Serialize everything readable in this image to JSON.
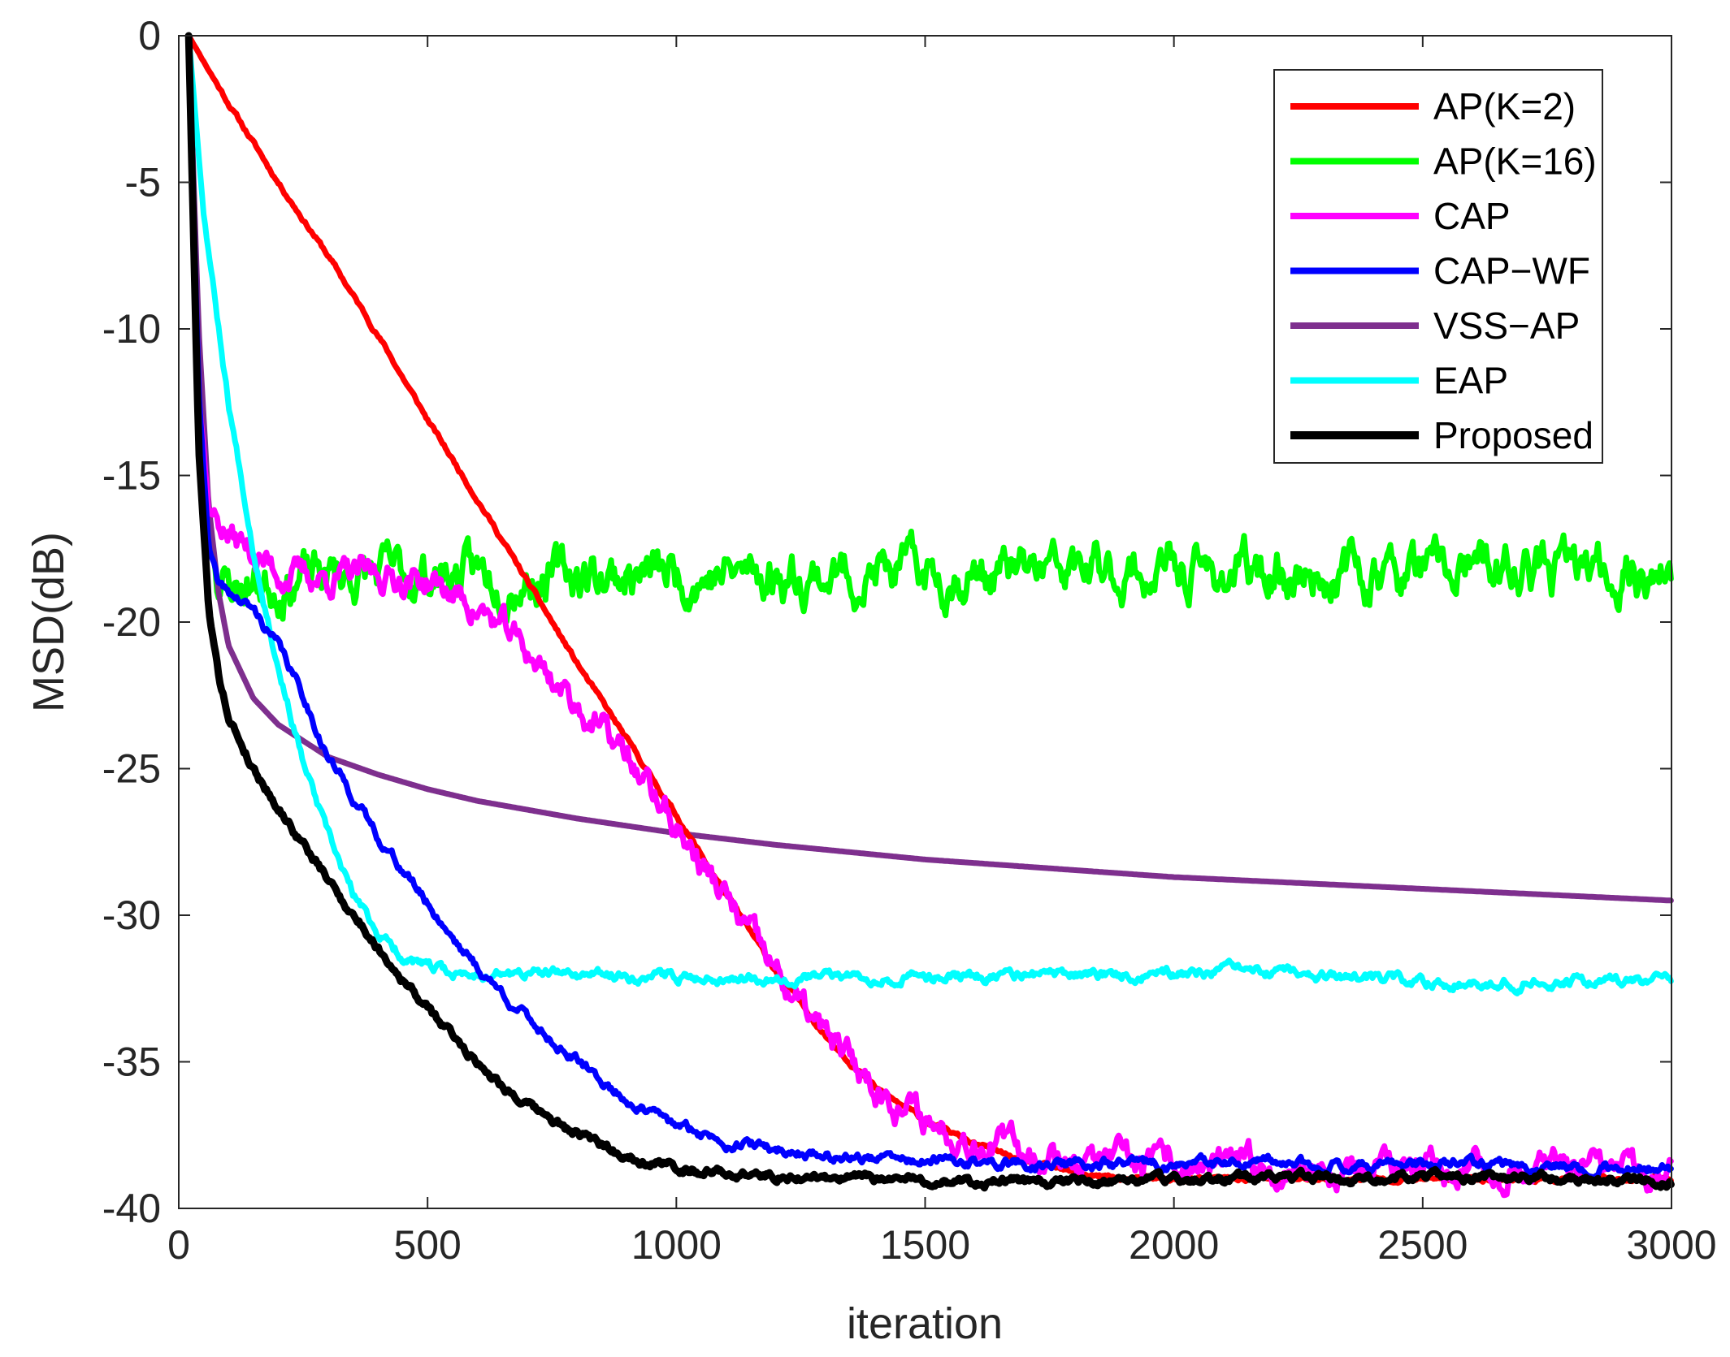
{
  "chart_data": {
    "type": "line",
    "title": "",
    "xlabel": "iteration",
    "ylabel": "MSD(dB)",
    "xlim": [
      0,
      3000
    ],
    "ylim": [
      -40,
      0
    ],
    "xticks": [
      0,
      500,
      1000,
      1500,
      2000,
      2500,
      3000
    ],
    "yticks": [
      0,
      -5,
      -10,
      -15,
      -20,
      -25,
      -30,
      -35,
      -40
    ],
    "grid": false,
    "legend_position": "top-right",
    "series": [
      {
        "name": "AP(K=2)",
        "color": "#ff0000",
        "noise": 0.05,
        "seed": 11,
        "x": [
          20,
          100,
          200,
          300,
          400,
          500,
          600,
          700,
          800,
          900,
          1000,
          1100,
          1200,
          1300,
          1400,
          1500,
          1600,
          1700,
          1800,
          1900,
          2000,
          2200,
          2500,
          3000
        ],
        "y": [
          0,
          -2.3,
          -5.0,
          -7.5,
          -10.2,
          -13.1,
          -15.8,
          -18.6,
          -21.4,
          -24.0,
          -26.6,
          -29.3,
          -31.9,
          -34.1,
          -35.9,
          -37.0,
          -37.8,
          -38.4,
          -38.8,
          -39.0,
          -39.0,
          -39.0,
          -39.0,
          -39.0
        ]
      },
      {
        "name": "AP(K=16)",
        "color": "#00ff00",
        "noise": 0.55,
        "seed": 23,
        "x": [
          20,
          40,
          60,
          80,
          100,
          200,
          300,
          3000
        ],
        "y": [
          0,
          -12.0,
          -16.5,
          -18.3,
          -18.8,
          -18.6,
          -18.4,
          -18.3
        ]
      },
      {
        "name": "CAP",
        "color": "#ff00ff",
        "noise": 0.35,
        "seed": 37,
        "x": [
          20,
          40,
          60,
          100,
          200,
          300,
          400,
          500,
          600,
          700,
          800,
          900,
          1000,
          1100,
          1200,
          1300,
          1400,
          1500,
          1600,
          1700,
          1800,
          1900,
          2000,
          2500,
          3000
        ],
        "y": [
          0,
          -12.0,
          -16.0,
          -17.0,
          -18.3,
          -18.5,
          -18.4,
          -18.6,
          -19.5,
          -21.0,
          -22.8,
          -24.6,
          -27.0,
          -29.5,
          -32.0,
          -34.2,
          -35.8,
          -37.0,
          -37.6,
          -38.0,
          -38.3,
          -38.5,
          -38.6,
          -38.7,
          -38.8
        ]
      },
      {
        "name": "CAP−WF",
        "color": "#0000ff",
        "noise": 0.12,
        "seed": 41,
        "x": [
          20,
          40,
          60,
          80,
          100,
          150,
          200,
          250,
          300,
          400,
          500,
          600,
          700,
          800,
          900,
          1000,
          1100,
          1200,
          1300,
          1400,
          1500,
          1700,
          2000,
          2500,
          3000
        ],
        "y": [
          0,
          -12.0,
          -17.5,
          -18.8,
          -19.0,
          -19.6,
          -20.8,
          -22.5,
          -24.6,
          -27.3,
          -29.6,
          -31.8,
          -33.5,
          -35.0,
          -36.3,
          -37.2,
          -37.7,
          -38.0,
          -38.2,
          -38.3,
          -38.4,
          -38.5,
          -38.5,
          -38.5,
          -38.6
        ]
      },
      {
        "name": "VSS−AP",
        "color": "#7e2f8e",
        "noise": 0,
        "seed": 53,
        "x": [
          20,
          40,
          60,
          80,
          100,
          150,
          200,
          300,
          400,
          500,
          600,
          800,
          1000,
          1200,
          1500,
          2000,
          2500,
          3000
        ],
        "y": [
          0,
          -10.0,
          -16.0,
          -19.0,
          -20.8,
          -22.6,
          -23.5,
          -24.6,
          -25.2,
          -25.7,
          -26.1,
          -26.7,
          -27.2,
          -27.6,
          -28.1,
          -28.7,
          -29.1,
          -29.5
        ]
      },
      {
        "name": "EAP",
        "color": "#00ffff",
        "noise": 0.12,
        "seed": 67,
        "x": [
          20,
          50,
          100,
          150,
          200,
          250,
          300,
          350,
          400,
          450,
          500,
          550,
          600,
          700,
          1000,
          1500,
          2000,
          2100,
          2500,
          3000
        ],
        "y": [
          0,
          -6.0,
          -12.5,
          -17.5,
          -21.5,
          -24.8,
          -27.3,
          -29.3,
          -30.6,
          -31.4,
          -31.8,
          -32.0,
          -32.0,
          -32.0,
          -32.1,
          -32.1,
          -32.0,
          -31.9,
          -32.3,
          -32.2
        ]
      },
      {
        "name": "Proposed",
        "color": "#000000",
        "noise": 0.1,
        "seed": 79,
        "x": [
          20,
          40,
          60,
          80,
          100,
          150,
          200,
          300,
          400,
          500,
          600,
          700,
          800,
          900,
          1000,
          1100,
          1200,
          1400,
          1600,
          1800,
          2000,
          2200,
          2500,
          3000
        ],
        "y": [
          0,
          -14.0,
          -19.5,
          -21.8,
          -23.2,
          -25.0,
          -26.3,
          -28.8,
          -31.1,
          -33.2,
          -35.0,
          -36.5,
          -37.5,
          -38.2,
          -38.6,
          -38.8,
          -38.9,
          -39.0,
          -39.1,
          -39.1,
          -39.0,
          -39.0,
          -38.9,
          -39.1
        ]
      }
    ]
  }
}
